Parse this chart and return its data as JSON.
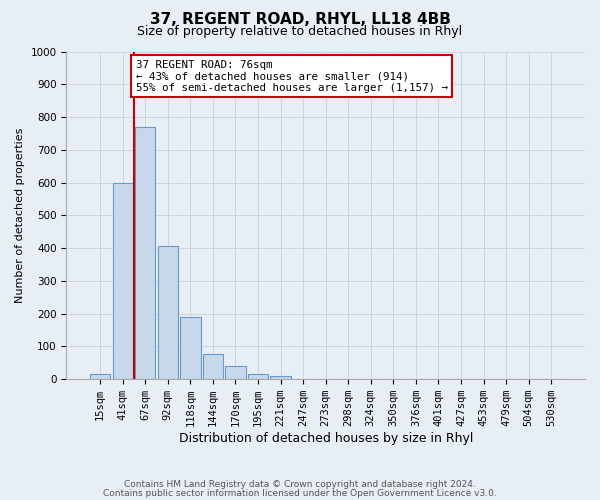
{
  "title_line1": "37, REGENT ROAD, RHYL, LL18 4BB",
  "title_line2": "Size of property relative to detached houses in Rhyl",
  "xlabel": "Distribution of detached houses by size in Rhyl",
  "ylabel": "Number of detached properties",
  "bar_labels": [
    "15sqm",
    "41sqm",
    "67sqm",
    "92sqm",
    "118sqm",
    "144sqm",
    "170sqm",
    "195sqm",
    "221sqm",
    "247sqm",
    "273sqm",
    "298sqm",
    "324sqm",
    "350sqm",
    "376sqm",
    "401sqm",
    "427sqm",
    "453sqm",
    "479sqm",
    "504sqm",
    "530sqm"
  ],
  "bar_values": [
    15,
    600,
    770,
    405,
    190,
    78,
    40,
    15,
    10,
    0,
    0,
    0,
    0,
    0,
    0,
    0,
    0,
    0,
    0,
    0,
    0
  ],
  "bar_color": "#c8d8ec",
  "bar_edge_color": "#6699cc",
  "ylim": [
    0,
    1000
  ],
  "yticks": [
    0,
    100,
    200,
    300,
    400,
    500,
    600,
    700,
    800,
    900,
    1000
  ],
  "property_line_xidx": 1.5,
  "property_line_color": "#cc0000",
  "annotation_title": "37 REGENT ROAD: 76sqm",
  "annotation_line1": "← 43% of detached houses are smaller (914)",
  "annotation_line2": "55% of semi-detached houses are larger (1,157) →",
  "annotation_box_color": "#cc0000",
  "footnote1": "Contains HM Land Registry data © Crown copyright and database right 2024.",
  "footnote2": "Contains public sector information licensed under the Open Government Licence v3.0.",
  "background_color": "#e8eef5",
  "grid_color": "#c8d0d8",
  "title_fontsize": 11,
  "subtitle_fontsize": 9,
  "xlabel_fontsize": 9,
  "ylabel_fontsize": 8,
  "tick_fontsize": 7.5,
  "footnote_fontsize": 6.5
}
